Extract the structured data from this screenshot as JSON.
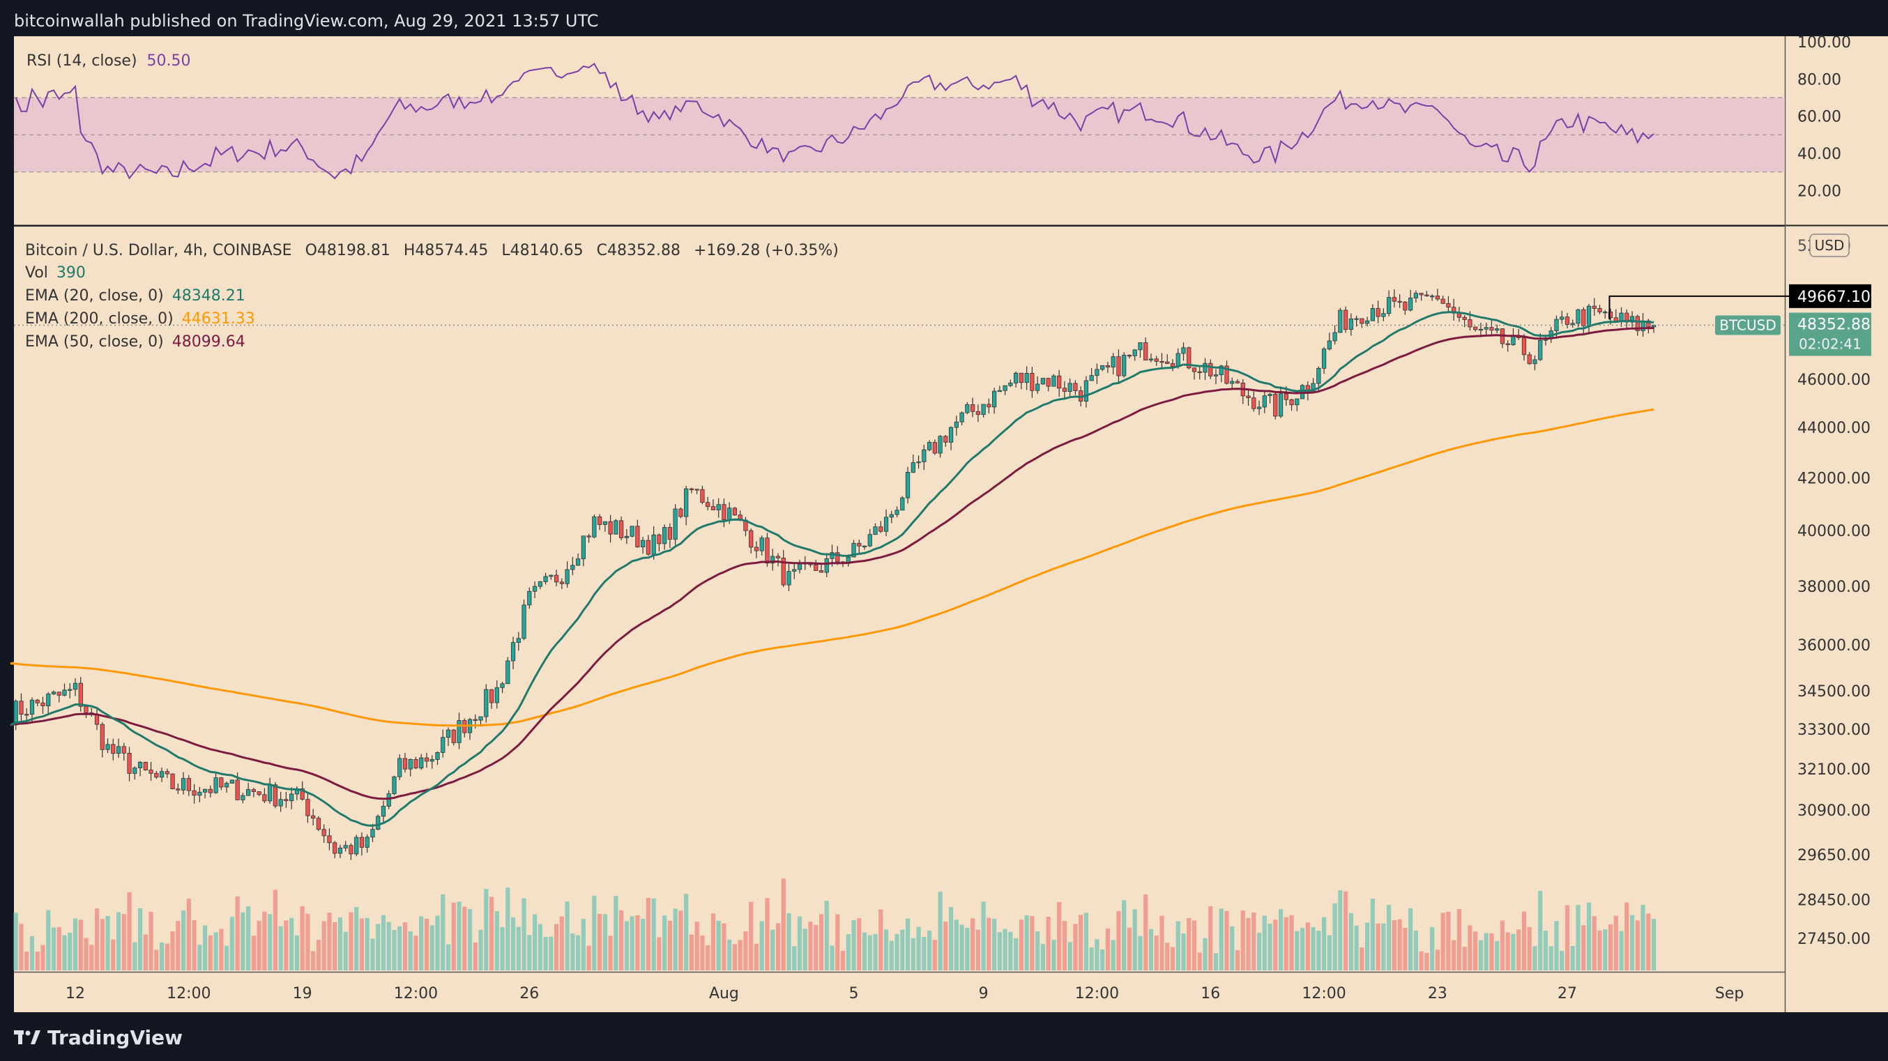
{
  "header": {
    "published_text": "bitcoinwallah published on TradingView.com, Aug 29, 2021 13:57 UTC"
  },
  "footer": {
    "logo_text": "TradingView"
  },
  "rsi_panel": {
    "label": "RSI (14, close)",
    "value": "50.50",
    "ticks": [
      "100.00",
      "80.00",
      "60.00",
      "40.00",
      "20.00"
    ]
  },
  "price_panel": {
    "symbol": "Bitcoin / U.S. Dollar, 4h, COINBASE",
    "open": "O48198.81",
    "high": "H48574.45",
    "low": "L48140.65",
    "close": "C48352.88",
    "change": "+169.28 (+0.35%)",
    "vol_label": "Vol",
    "vol_value": "390",
    "ema20_label": "EMA (20, close, 0)",
    "ema20_value": "48348.21",
    "ema200_label": "EMA (200, close, 0)",
    "ema200_value": "44631.33",
    "ema50_label": "EMA (50, close, 0)",
    "ema50_value": "48099.64",
    "currency": "USD",
    "top_tick": "52 000",
    "price_ticks": [
      "46000.00",
      "44000.00",
      "42000.00",
      "40000.00",
      "38000.00",
      "36000.00",
      "34500.00",
      "33300.00",
      "32100.00",
      "30900.00",
      "29650.00",
      "28450.00",
      "27450.00"
    ],
    "high_marker": "49667.10",
    "last_symbol": "BTCUSD",
    "last_price": "48352.88",
    "countdown": "02:02:41"
  },
  "time_axis": {
    "labels": [
      "12",
      "12:00",
      "19",
      "12:00",
      "26",
      "Aug",
      "5",
      "9",
      "12:00",
      "16",
      "12:00",
      "23",
      "27",
      "Sep"
    ]
  },
  "colors": {
    "background": "#f5e1c8",
    "up": "#26a69a",
    "down": "#ef5350",
    "ema20": "#1f7a6c",
    "ema50": "#7d1a3f",
    "ema200": "#ff9800",
    "rsi_line": "#7b3fa6",
    "rsi_band": "#e8c7cf"
  },
  "chart_data": {
    "type": "candlestick",
    "symbol": "Bitcoin / U.S. Dollar",
    "interval": "4h",
    "exchange": "COINBASE",
    "scale": "log",
    "ylim": [
      27000,
      52000
    ],
    "anchors": [
      [
        "Jul 10",
        33800
      ],
      [
        "Jul 12",
        34500
      ],
      [
        "Jul 13",
        32700
      ],
      [
        "Jul 14",
        32000
      ],
      [
        "Jul 15",
        31600
      ],
      [
        "Jul 17",
        31500
      ],
      [
        "Jul 19",
        31200
      ],
      [
        "Jul 20",
        29800
      ],
      [
        "Jul 21",
        29900
      ],
      [
        "Jul 22",
        32100
      ],
      [
        "Jul 23",
        32500
      ],
      [
        "Jul 24",
        33500
      ],
      [
        "Jul 25",
        34500
      ],
      [
        "Jul 26",
        37500
      ],
      [
        "Jul 27",
        38500
      ],
      [
        "Jul 28",
        40300
      ],
      [
        "Jul 29",
        39900
      ],
      [
        "Jul 30",
        39400
      ],
      [
        "Jul 31",
        41500
      ],
      [
        "Aug 1",
        40800
      ],
      [
        "Aug 2",
        39600
      ],
      [
        "Aug 3",
        38200
      ],
      [
        "Aug 4",
        38700
      ],
      [
        "Aug 5",
        39200
      ],
      [
        "Aug 6",
        40300
      ],
      [
        "Aug 7",
        42500
      ],
      [
        "Aug 8",
        44000
      ],
      [
        "Aug 9",
        45000
      ],
      [
        "Aug 10",
        46000
      ],
      [
        "Aug 11",
        46000
      ],
      [
        "Aug 12",
        45500
      ],
      [
        "Aug 13",
        46500
      ],
      [
        "Aug 14",
        47300
      ],
      [
        "Aug 15",
        47000
      ],
      [
        "Aug 16",
        46400
      ],
      [
        "Aug 17",
        45400
      ],
      [
        "Aug 18",
        44800
      ],
      [
        "Aug 19",
        45800
      ],
      [
        "Aug 20",
        48500
      ],
      [
        "Aug 21",
        49200
      ],
      [
        "Aug 22",
        49100
      ],
      [
        "Aug 23",
        49700
      ],
      [
        "Aug 24",
        48100
      ],
      [
        "Aug 25",
        47600
      ],
      [
        "Aug 26",
        47000
      ],
      [
        "Aug 27",
        48700
      ],
      [
        "Aug 28",
        48800
      ],
      [
        "Aug 29",
        48350
      ]
    ],
    "ema20_last": 48348.21,
    "ema50_last": 48099.64,
    "ema200_last": 44631.33,
    "ema200_start": 35400,
    "rsi_last": 50.5,
    "rsi_band": [
      30,
      70
    ],
    "rsi_ylim": [
      10,
      100
    ]
  }
}
